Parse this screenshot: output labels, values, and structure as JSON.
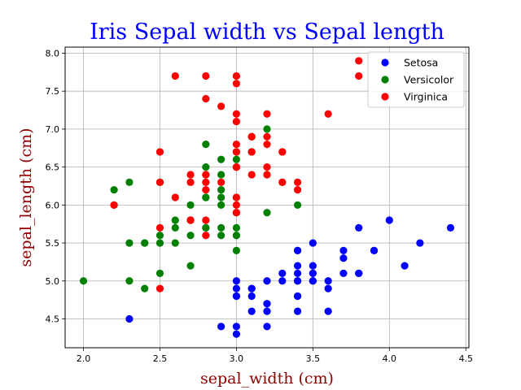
{
  "chart_data": {
    "type": "scatter",
    "title": "Iris Sepal width vs Sepal length",
    "xlabel": "sepal_width (cm)",
    "ylabel": "sepal_length (cm)",
    "xlim": [
      1.88,
      4.52
    ],
    "ylim": [
      4.12,
      8.08
    ],
    "xticks": [
      "2.0",
      "2.5",
      "3.0",
      "3.5",
      "4.0",
      "4.5"
    ],
    "yticks": [
      "4.5",
      "5.0",
      "5.5",
      "6.0",
      "6.5",
      "7.0",
      "7.5",
      "8.0"
    ],
    "grid": true,
    "legend_position": "top-right",
    "colors": {
      "title": "#0000ff",
      "axis_labels": "#8b0000",
      "Setosa": "#0000ff",
      "Versicolor": "#008000",
      "Virginica": "#ff0000",
      "grid": "#b0b0b0"
    },
    "series": [
      {
        "name": "Setosa",
        "points": [
          [
            3.5,
            5.1
          ],
          [
            3.0,
            4.9
          ],
          [
            3.2,
            4.7
          ],
          [
            3.1,
            4.6
          ],
          [
            3.6,
            5.0
          ],
          [
            3.9,
            5.4
          ],
          [
            3.4,
            4.6
          ],
          [
            3.4,
            5.0
          ],
          [
            2.9,
            4.4
          ],
          [
            3.1,
            4.9
          ],
          [
            3.7,
            5.4
          ],
          [
            3.4,
            4.8
          ],
          [
            3.0,
            4.8
          ],
          [
            3.0,
            4.3
          ],
          [
            4.0,
            5.8
          ],
          [
            4.4,
            5.7
          ],
          [
            3.9,
            5.4
          ],
          [
            3.5,
            5.1
          ],
          [
            3.8,
            5.7
          ],
          [
            3.8,
            5.1
          ],
          [
            3.4,
            5.4
          ],
          [
            3.7,
            5.1
          ],
          [
            3.6,
            4.6
          ],
          [
            3.3,
            5.1
          ],
          [
            3.4,
            4.8
          ],
          [
            3.0,
            5.0
          ],
          [
            3.4,
            5.0
          ],
          [
            3.5,
            5.2
          ],
          [
            3.4,
            5.2
          ],
          [
            3.2,
            4.7
          ],
          [
            3.1,
            4.8
          ],
          [
            3.4,
            5.4
          ],
          [
            4.1,
            5.2
          ],
          [
            4.2,
            5.5
          ],
          [
            3.1,
            4.9
          ],
          [
            3.2,
            5.0
          ],
          [
            3.5,
            5.5
          ],
          [
            3.6,
            4.9
          ],
          [
            3.0,
            4.4
          ],
          [
            3.4,
            5.1
          ],
          [
            3.5,
            5.0
          ],
          [
            2.3,
            4.5
          ],
          [
            3.2,
            4.4
          ],
          [
            3.5,
            5.0
          ],
          [
            3.8,
            5.1
          ],
          [
            3.0,
            4.8
          ],
          [
            3.8,
            5.1
          ],
          [
            3.2,
            4.6
          ],
          [
            3.7,
            5.3
          ],
          [
            3.3,
            5.0
          ]
        ]
      },
      {
        "name": "Versicolor",
        "points": [
          [
            3.2,
            7.0
          ],
          [
            3.2,
            6.4
          ],
          [
            3.1,
            6.9
          ],
          [
            2.3,
            5.5
          ],
          [
            2.8,
            6.5
          ],
          [
            2.8,
            5.7
          ],
          [
            3.3,
            6.3
          ],
          [
            2.4,
            4.9
          ],
          [
            2.9,
            6.6
          ],
          [
            2.7,
            5.2
          ],
          [
            2.0,
            5.0
          ],
          [
            3.0,
            5.9
          ],
          [
            2.2,
            6.0
          ],
          [
            2.9,
            6.1
          ],
          [
            2.9,
            5.6
          ],
          [
            3.1,
            6.7
          ],
          [
            3.0,
            5.6
          ],
          [
            2.7,
            5.8
          ],
          [
            2.2,
            6.2
          ],
          [
            2.5,
            5.6
          ],
          [
            3.2,
            5.9
          ],
          [
            2.8,
            6.1
          ],
          [
            2.5,
            6.3
          ],
          [
            2.8,
            6.1
          ],
          [
            2.9,
            6.4
          ],
          [
            3.0,
            6.6
          ],
          [
            2.8,
            6.8
          ],
          [
            3.0,
            6.7
          ],
          [
            2.9,
            6.0
          ],
          [
            2.6,
            5.7
          ],
          [
            2.4,
            5.5
          ],
          [
            2.4,
            5.5
          ],
          [
            2.7,
            5.8
          ],
          [
            2.7,
            6.0
          ],
          [
            3.0,
            5.4
          ],
          [
            3.4,
            6.0
          ],
          [
            3.1,
            6.7
          ],
          [
            2.3,
            6.3
          ],
          [
            3.0,
            5.6
          ],
          [
            2.5,
            5.5
          ],
          [
            2.6,
            5.5
          ],
          [
            3.0,
            6.1
          ],
          [
            2.6,
            5.8
          ],
          [
            2.3,
            5.0
          ],
          [
            2.7,
            5.6
          ],
          [
            3.0,
            5.7
          ],
          [
            2.9,
            5.7
          ],
          [
            2.9,
            6.2
          ],
          [
            2.5,
            5.1
          ],
          [
            2.8,
            5.7
          ]
        ]
      },
      {
        "name": "Virginica",
        "points": [
          [
            3.3,
            6.3
          ],
          [
            2.7,
            5.8
          ],
          [
            3.0,
            7.1
          ],
          [
            2.9,
            6.3
          ],
          [
            3.0,
            6.5
          ],
          [
            3.0,
            7.6
          ],
          [
            2.5,
            4.9
          ],
          [
            2.9,
            7.3
          ],
          [
            2.5,
            6.7
          ],
          [
            3.6,
            7.2
          ],
          [
            3.2,
            6.5
          ],
          [
            2.7,
            6.4
          ],
          [
            3.0,
            6.8
          ],
          [
            2.5,
            5.7
          ],
          [
            2.8,
            5.8
          ],
          [
            3.2,
            6.4
          ],
          [
            3.0,
            6.5
          ],
          [
            3.8,
            7.7
          ],
          [
            2.6,
            7.7
          ],
          [
            2.2,
            6.0
          ],
          [
            3.2,
            6.9
          ],
          [
            2.8,
            5.6
          ],
          [
            2.8,
            7.7
          ],
          [
            2.7,
            6.3
          ],
          [
            3.3,
            6.7
          ],
          [
            3.2,
            7.2
          ],
          [
            2.8,
            6.2
          ],
          [
            3.0,
            6.1
          ],
          [
            2.8,
            6.4
          ],
          [
            3.0,
            7.2
          ],
          [
            2.8,
            7.4
          ],
          [
            3.8,
            7.9
          ],
          [
            2.8,
            6.4
          ],
          [
            2.8,
            6.3
          ],
          [
            2.6,
            6.1
          ],
          [
            3.0,
            7.7
          ],
          [
            3.4,
            6.3
          ],
          [
            3.1,
            6.4
          ],
          [
            3.0,
            6.0
          ],
          [
            3.1,
            6.9
          ],
          [
            3.1,
            6.7
          ],
          [
            3.1,
            6.9
          ],
          [
            2.7,
            5.8
          ],
          [
            3.2,
            6.8
          ],
          [
            3.3,
            6.7
          ],
          [
            3.0,
            6.7
          ],
          [
            2.5,
            6.3
          ],
          [
            3.0,
            6.5
          ],
          [
            3.4,
            6.2
          ],
          [
            3.0,
            5.9
          ]
        ]
      }
    ]
  }
}
